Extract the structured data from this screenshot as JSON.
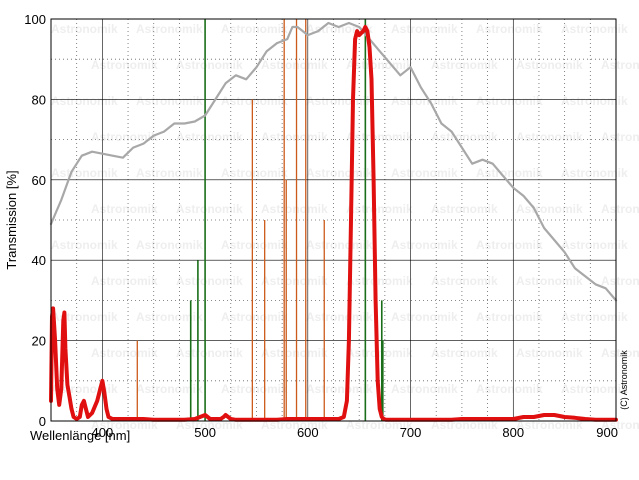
{
  "chart_data": {
    "type": "line",
    "xlabel": "Wellenlänge [nm]",
    "ylabel": "Transmission [%]",
    "xlim": [
      350,
      900
    ],
    "ylim": [
      0,
      100
    ],
    "x_ticks": [
      400,
      500,
      600,
      700,
      800,
      900
    ],
    "y_ticks": [
      0,
      20,
      40,
      60,
      80,
      100
    ],
    "grid": true,
    "copyright": "(C) Astronomik",
    "watermark": "Astronomik",
    "colors": {
      "filter": "#e01010",
      "sensor": "#a8a8a8",
      "green_lines": "#1a6e1a",
      "orange_lines": "#cc5a1a",
      "grid": "#000000"
    },
    "series": [
      {
        "key": "sensor",
        "x": [
          350,
          355,
          360,
          370,
          380,
          390,
          400,
          410,
          420,
          430,
          440,
          450,
          460,
          470,
          480,
          490,
          500,
          510,
          520,
          530,
          540,
          550,
          560,
          570,
          580,
          585,
          590,
          600,
          610,
          620,
          630,
          640,
          650,
          660,
          670,
          680,
          690,
          700,
          710,
          720,
          730,
          740,
          750,
          760,
          770,
          780,
          790,
          800,
          810,
          820,
          830,
          840,
          850,
          860,
          870,
          880,
          890,
          900
        ],
        "y": [
          49,
          52,
          55,
          62,
          66,
          67,
          66.5,
          66,
          65.5,
          68,
          69,
          71,
          72,
          74,
          74,
          74.5,
          76,
          80,
          84,
          86,
          85,
          88,
          92,
          94,
          95,
          98,
          98,
          96,
          97,
          99,
          98,
          99,
          98,
          95,
          92,
          89,
          86,
          88,
          83,
          79,
          74,
          72,
          68,
          64,
          65,
          64,
          61,
          58,
          56,
          53,
          48,
          45,
          42,
          38,
          36,
          34,
          33,
          30
        ]
      },
      {
        "key": "filter",
        "x": [
          350,
          351,
          352,
          354,
          356,
          358,
          360,
          362,
          363,
          364,
          366,
          368,
          370,
          372,
          375,
          378,
          380,
          382,
          384,
          386,
          390,
          395,
          398,
          400,
          402,
          404,
          406,
          410,
          420,
          430,
          440,
          450,
          460,
          470,
          480,
          490,
          495,
          500,
          505,
          510,
          515,
          518,
          520,
          525,
          530,
          540,
          550,
          560,
          570,
          580,
          590,
          600,
          610,
          620,
          630,
          635,
          638,
          640,
          642,
          644,
          646,
          648,
          650,
          652,
          654,
          656,
          658,
          660,
          662,
          664,
          666,
          668,
          670,
          672,
          674,
          676,
          678,
          680,
          690,
          700,
          710,
          720,
          730,
          740,
          750,
          760,
          770,
          780,
          790,
          800,
          810,
          820,
          830,
          840,
          850,
          860,
          870,
          880,
          890,
          900
        ],
        "y": [
          5,
          26,
          28,
          20,
          8,
          4,
          8,
          25,
          27,
          18,
          9,
          6,
          3,
          1,
          0.5,
          1,
          4,
          5,
          3,
          1,
          2,
          5,
          8,
          10,
          7,
          3,
          1,
          0.5,
          0.5,
          0.5,
          0.5,
          0.3,
          0.3,
          0.3,
          0.3,
          0.5,
          1,
          1.5,
          0.5,
          0.5,
          0.5,
          1,
          1.5,
          0.5,
          0.3,
          0.3,
          0.3,
          0.3,
          0.3,
          0.5,
          0.5,
          0.5,
          0.5,
          0.5,
          0.5,
          1,
          5,
          20,
          50,
          80,
          95,
          97,
          96,
          96.5,
          97,
          98,
          97,
          93,
          85,
          60,
          30,
          10,
          3,
          1,
          0.5,
          0.3,
          0.3,
          0.3,
          0.3,
          0.3,
          0.3,
          0.3,
          0.3,
          0.3,
          0.5,
          0.5,
          0.5,
          0.5,
          0.5,
          0.5,
          1,
          1,
          1.5,
          1.5,
          1,
          0.8,
          0.5,
          0.3,
          0.3,
          0.3
        ]
      }
    ],
    "emission_lines": [
      {
        "x": 434,
        "height": 20,
        "color": "orange"
      },
      {
        "x": 486,
        "height": 30,
        "color": "green"
      },
      {
        "x": 493,
        "height": 40,
        "color": "green"
      },
      {
        "x": 500,
        "height": 100,
        "color": "green"
      },
      {
        "x": 546,
        "height": 80,
        "color": "orange"
      },
      {
        "x": 558,
        "height": 50,
        "color": "orange"
      },
      {
        "x": 577,
        "height": 100,
        "color": "orange"
      },
      {
        "x": 579,
        "height": 60,
        "color": "orange"
      },
      {
        "x": 589,
        "height": 100,
        "color": "orange"
      },
      {
        "x": 598,
        "height": 100,
        "color": "orange"
      },
      {
        "x": 616,
        "height": 50,
        "color": "orange"
      },
      {
        "x": 656,
        "height": 100,
        "color": "green"
      },
      {
        "x": 672,
        "height": 30,
        "color": "green"
      },
      {
        "x": 673,
        "height": 20,
        "color": "green"
      }
    ]
  }
}
